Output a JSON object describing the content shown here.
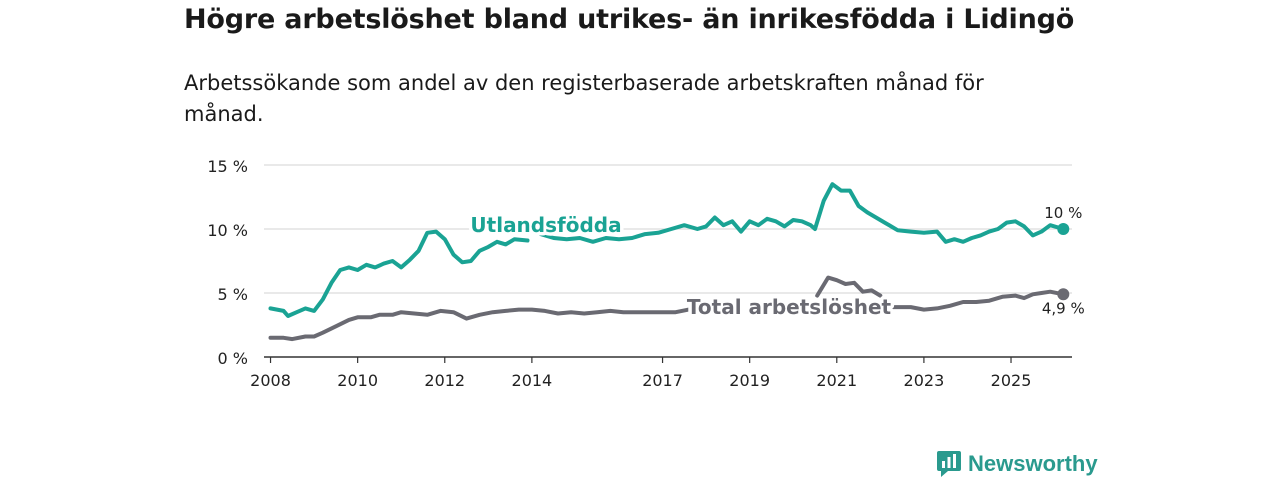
{
  "title": "Högre arbetslöshet bland utrikes- än inrikesfödda i Lidingö",
  "subtitle": "Arbetssökande som andel av den registerbaserade arbetskraften månad för månad.",
  "brand": "Newsworthy",
  "colors": {
    "foreign": "#1aa394",
    "total": "#6a6a72",
    "grid": "#dcdcdc",
    "axis": "#333333"
  },
  "chart_data": {
    "type": "line",
    "title": "Högre arbetslöshet bland utrikes- än inrikesfödda i Lidingö",
    "xlabel": "",
    "ylabel": "",
    "xlim": [
      2007.85,
      2026.4
    ],
    "ylim": [
      0,
      15
    ],
    "y_ticks": [
      0,
      5,
      10,
      15
    ],
    "y_tick_labels": [
      "0 %",
      "5 %",
      "10 %",
      "15 %"
    ],
    "x_ticks": [
      2008,
      2010,
      2012,
      2014,
      2017,
      2019,
      2021,
      2023,
      2025
    ],
    "x_tick_labels": [
      "2008",
      "2010",
      "2012",
      "2014",
      "2017",
      "2019",
      "2021",
      "2023",
      "2025"
    ],
    "grid": true,
    "series": [
      {
        "name": "Utlandsfödda",
        "end_label": "10 %",
        "points": [
          [
            2008.0,
            3.8
          ],
          [
            2008.3,
            3.6
          ],
          [
            2008.4,
            3.2
          ],
          [
            2008.6,
            3.5
          ],
          [
            2008.8,
            3.8
          ],
          [
            2009.0,
            3.6
          ],
          [
            2009.2,
            4.5
          ],
          [
            2009.4,
            5.8
          ],
          [
            2009.6,
            6.8
          ],
          [
            2009.8,
            7.0
          ],
          [
            2010.0,
            6.8
          ],
          [
            2010.2,
            7.2
          ],
          [
            2010.4,
            7.0
          ],
          [
            2010.6,
            7.3
          ],
          [
            2010.8,
            7.5
          ],
          [
            2011.0,
            7.0
          ],
          [
            2011.2,
            7.6
          ],
          [
            2011.4,
            8.3
          ],
          [
            2011.6,
            9.7
          ],
          [
            2011.8,
            9.8
          ],
          [
            2012.0,
            9.2
          ],
          [
            2012.2,
            8.0
          ],
          [
            2012.4,
            7.4
          ],
          [
            2012.6,
            7.5
          ],
          [
            2012.8,
            8.3
          ],
          [
            2013.0,
            8.6
          ],
          [
            2013.2,
            9.0
          ],
          [
            2013.4,
            8.8
          ],
          [
            2013.6,
            9.2
          ],
          [
            2013.9,
            9.1
          ]
        ]
      },
      {
        "name": "Utlandsfödda",
        "points": [
          [
            2014.2,
            9.6
          ],
          [
            2014.5,
            9.3
          ],
          [
            2014.8,
            9.2
          ],
          [
            2015.1,
            9.3
          ],
          [
            2015.4,
            9.0
          ],
          [
            2015.7,
            9.3
          ],
          [
            2016.0,
            9.2
          ],
          [
            2016.3,
            9.3
          ],
          [
            2016.6,
            9.6
          ],
          [
            2016.9,
            9.7
          ],
          [
            2017.2,
            10.0
          ],
          [
            2017.5,
            10.3
          ],
          [
            2017.8,
            10.0
          ],
          [
            2018.0,
            10.2
          ],
          [
            2018.2,
            10.9
          ],
          [
            2018.4,
            10.3
          ],
          [
            2018.6,
            10.6
          ],
          [
            2018.8,
            9.8
          ],
          [
            2019.0,
            10.6
          ],
          [
            2019.2,
            10.3
          ],
          [
            2019.4,
            10.8
          ],
          [
            2019.6,
            10.6
          ],
          [
            2019.8,
            10.2
          ],
          [
            2020.0,
            10.7
          ],
          [
            2020.2,
            10.6
          ],
          [
            2020.4,
            10.3
          ],
          [
            2020.5,
            10.0
          ],
          [
            2020.7,
            12.2
          ],
          [
            2020.9,
            13.5
          ],
          [
            2021.1,
            13.0
          ],
          [
            2021.3,
            13.0
          ],
          [
            2021.5,
            11.8
          ],
          [
            2021.7,
            11.3
          ],
          [
            2021.9,
            10.9
          ],
          [
            2022.1,
            10.5
          ],
          [
            2022.4,
            9.9
          ],
          [
            2022.7,
            9.8
          ],
          [
            2023.0,
            9.7
          ],
          [
            2023.3,
            9.8
          ],
          [
            2023.5,
            9.0
          ],
          [
            2023.7,
            9.2
          ],
          [
            2023.9,
            9.0
          ],
          [
            2024.1,
            9.3
          ],
          [
            2024.3,
            9.5
          ],
          [
            2024.5,
            9.8
          ],
          [
            2024.7,
            10.0
          ],
          [
            2024.9,
            10.5
          ],
          [
            2025.1,
            10.6
          ],
          [
            2025.3,
            10.2
          ],
          [
            2025.5,
            9.5
          ],
          [
            2025.7,
            9.8
          ],
          [
            2025.9,
            10.3
          ],
          [
            2026.2,
            10.0
          ]
        ]
      },
      {
        "name": "Total arbetslöshet",
        "end_label": "4,9 %",
        "points": [
          [
            2008.0,
            1.5
          ],
          [
            2008.3,
            1.5
          ],
          [
            2008.5,
            1.4
          ],
          [
            2008.8,
            1.6
          ],
          [
            2009.0,
            1.6
          ],
          [
            2009.2,
            1.9
          ],
          [
            2009.5,
            2.4
          ],
          [
            2009.8,
            2.9
          ],
          [
            2010.0,
            3.1
          ],
          [
            2010.3,
            3.1
          ],
          [
            2010.5,
            3.3
          ],
          [
            2010.8,
            3.3
          ],
          [
            2011.0,
            3.5
          ],
          [
            2011.3,
            3.4
          ],
          [
            2011.6,
            3.3
          ],
          [
            2011.9,
            3.6
          ],
          [
            2012.2,
            3.5
          ],
          [
            2012.5,
            3.0
          ],
          [
            2012.8,
            3.3
          ],
          [
            2013.1,
            3.5
          ],
          [
            2013.4,
            3.6
          ],
          [
            2013.7,
            3.7
          ],
          [
            2014.0,
            3.7
          ],
          [
            2014.3,
            3.6
          ],
          [
            2014.6,
            3.4
          ],
          [
            2014.9,
            3.5
          ],
          [
            2015.2,
            3.4
          ],
          [
            2015.5,
            3.5
          ],
          [
            2015.8,
            3.6
          ],
          [
            2016.1,
            3.5
          ],
          [
            2016.4,
            3.5
          ],
          [
            2016.7,
            3.5
          ],
          [
            2017.0,
            3.5
          ],
          [
            2017.3,
            3.5
          ],
          [
            2017.6,
            3.7
          ]
        ]
      },
      {
        "name": "Total arbetslöshet",
        "points": [
          [
            2020.55,
            4.8
          ],
          [
            2020.8,
            6.2
          ],
          [
            2021.0,
            6.0
          ],
          [
            2021.2,
            5.7
          ],
          [
            2021.4,
            5.8
          ],
          [
            2021.6,
            5.1
          ],
          [
            2021.8,
            5.2
          ],
          [
            2022.0,
            4.8
          ]
        ]
      },
      {
        "name": "Total arbetslöshet",
        "points": [
          [
            2022.15,
            3.9
          ],
          [
            2022.4,
            3.9
          ],
          [
            2022.7,
            3.9
          ],
          [
            2023.0,
            3.7
          ],
          [
            2023.3,
            3.8
          ],
          [
            2023.6,
            4.0
          ],
          [
            2023.9,
            4.3
          ],
          [
            2024.2,
            4.3
          ],
          [
            2024.5,
            4.4
          ],
          [
            2024.8,
            4.7
          ],
          [
            2025.1,
            4.8
          ],
          [
            2025.3,
            4.6
          ],
          [
            2025.5,
            4.9
          ],
          [
            2025.7,
            5.0
          ],
          [
            2025.9,
            5.1
          ],
          [
            2026.2,
            4.9
          ]
        ]
      }
    ]
  }
}
